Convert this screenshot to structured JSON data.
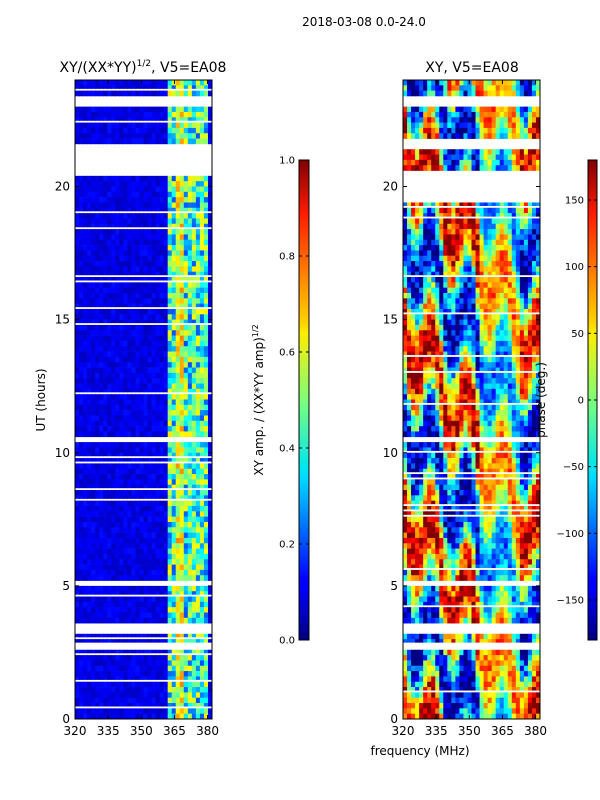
{
  "chart_data": {
    "type": "heatmap",
    "supertitle": "2018-03-08 0.0-24.0",
    "panels": [
      {
        "title_main": "XY/(XX*YY)",
        "title_exp": "1/2",
        "title_tail": ", V5=EA08",
        "kind": "amplitude",
        "xlim": [
          320,
          382
        ],
        "ylim": [
          0,
          24
        ],
        "xticks": [
          "320",
          "335",
          "350",
          "365",
          "380"
        ],
        "xtick_values": [
          320,
          335,
          350,
          365,
          380
        ],
        "yticks": [
          "0",
          "5",
          "10",
          "15",
          "20"
        ],
        "ytick_values": [
          0,
          5,
          10,
          15,
          20
        ],
        "ylabel": "UT (hours)",
        "colorbar": {
          "label_main": "XY amp. / (XX*YY amp)",
          "label_exp": "1/2",
          "range": [
            0.0,
            1.0
          ],
          "ticks": [
            "0.0",
            "0.2",
            "0.4",
            "0.6",
            "0.8",
            "1.0"
          ],
          "tick_values": [
            0.0,
            0.2,
            0.4,
            0.6,
            0.8,
            1.0
          ],
          "colormap": "jet"
        },
        "blank_hours": [
          [
            20.45,
            21.5
          ],
          [
            22.95,
            23.3
          ],
          [
            10.35,
            10.6
          ],
          [
            5.05,
            5.3
          ],
          [
            2.6,
            2.85
          ],
          [
            3.3,
            3.5
          ]
        ]
      },
      {
        "title_main": "XY, V5=EA08",
        "kind": "phase",
        "xlim": [
          320,
          382
        ],
        "ylim": [
          0,
          24
        ],
        "xticks": [
          "320",
          "335",
          "350",
          "365",
          "380"
        ],
        "xtick_values": [
          320,
          335,
          350,
          365,
          380
        ],
        "yticks": [
          "0",
          "5",
          "10",
          "15",
          "20"
        ],
        "ytick_values": [
          0,
          5,
          10,
          15,
          20
        ],
        "xlabel": "frequency (MHz)",
        "colorbar": {
          "label": "phase (deg.)",
          "range": [
            -180,
            180
          ],
          "ticks": [
            "−150",
            "−100",
            "−50",
            "0",
            "50",
            "100",
            "150"
          ],
          "tick_values": [
            -150,
            -100,
            -50,
            0,
            50,
            100,
            150
          ],
          "colormap": "jet"
        },
        "blank_hours": [
          [
            19.45,
            20.6
          ],
          [
            21.5,
            21.75
          ],
          [
            22.95,
            23.3
          ],
          [
            10.35,
            10.55
          ],
          [
            5.05,
            5.3
          ],
          [
            2.6,
            2.85
          ],
          [
            3.3,
            3.5
          ]
        ]
      }
    ]
  },
  "colors": {
    "background": "#ffffff",
    "axis": "#000000"
  }
}
